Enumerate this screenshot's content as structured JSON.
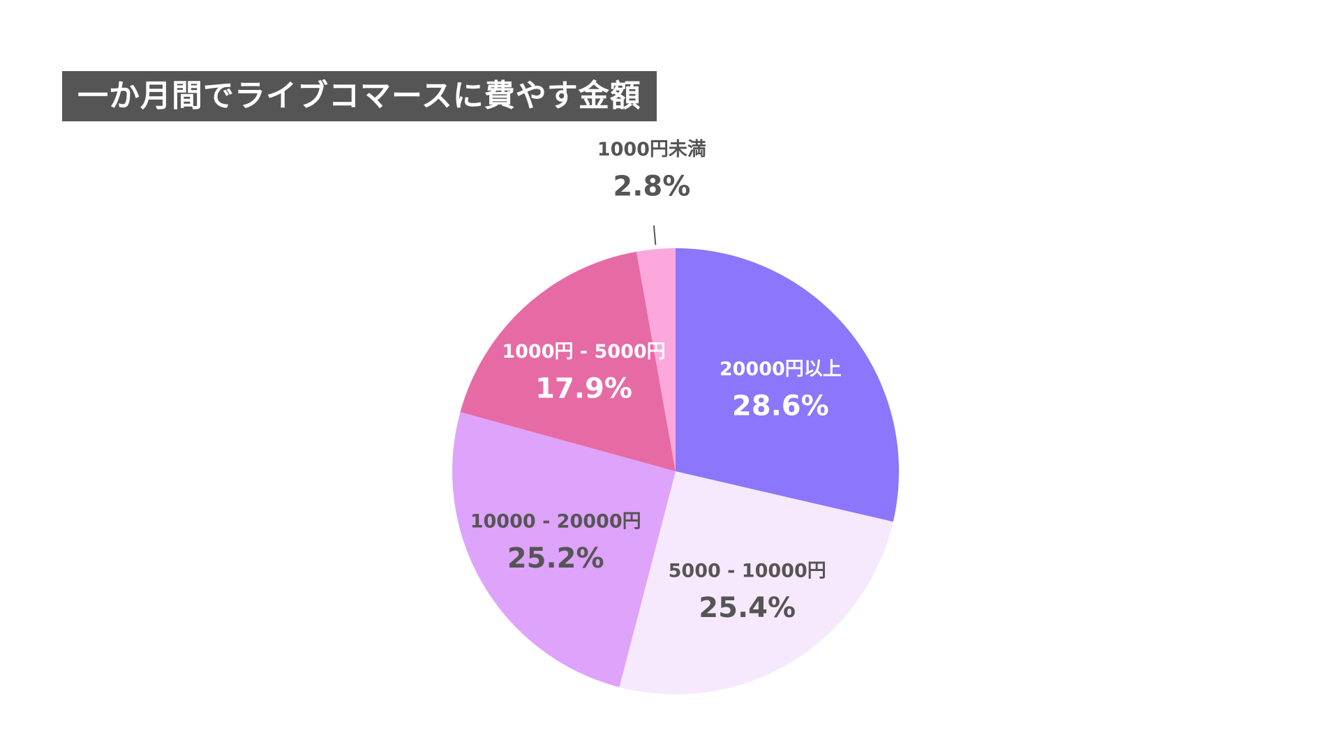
{
  "chart_data": {
    "type": "pie",
    "title": "一か月間でライブコマースに費やす金額",
    "slices": [
      {
        "label": "20000円以上",
        "value": 28.6,
        "value_label": "28.6%",
        "color": "#8b76fc",
        "text_color": "#ffffff"
      },
      {
        "label": "5000 - 10000円",
        "value": 25.4,
        "value_label": "25.4%",
        "color": "#f7e9fd",
        "text_color": "#555555"
      },
      {
        "label": "10000 - 20000円",
        "value": 25.2,
        "value_label": "25.2%",
        "color": "#dea3fb",
        "text_color": "#555555"
      },
      {
        "label": "1000円 - 5000円",
        "value": 17.9,
        "value_label": "17.9%",
        "color": "#e66ba4",
        "text_color": "#ffffff"
      },
      {
        "label": "1000円未満",
        "value": 2.8,
        "value_label": "2.8%",
        "color": "#fda8dc",
        "text_color": "#555555"
      }
    ],
    "start_angle": "12 o'clock",
    "direction": "clockwise",
    "legend": "none"
  }
}
